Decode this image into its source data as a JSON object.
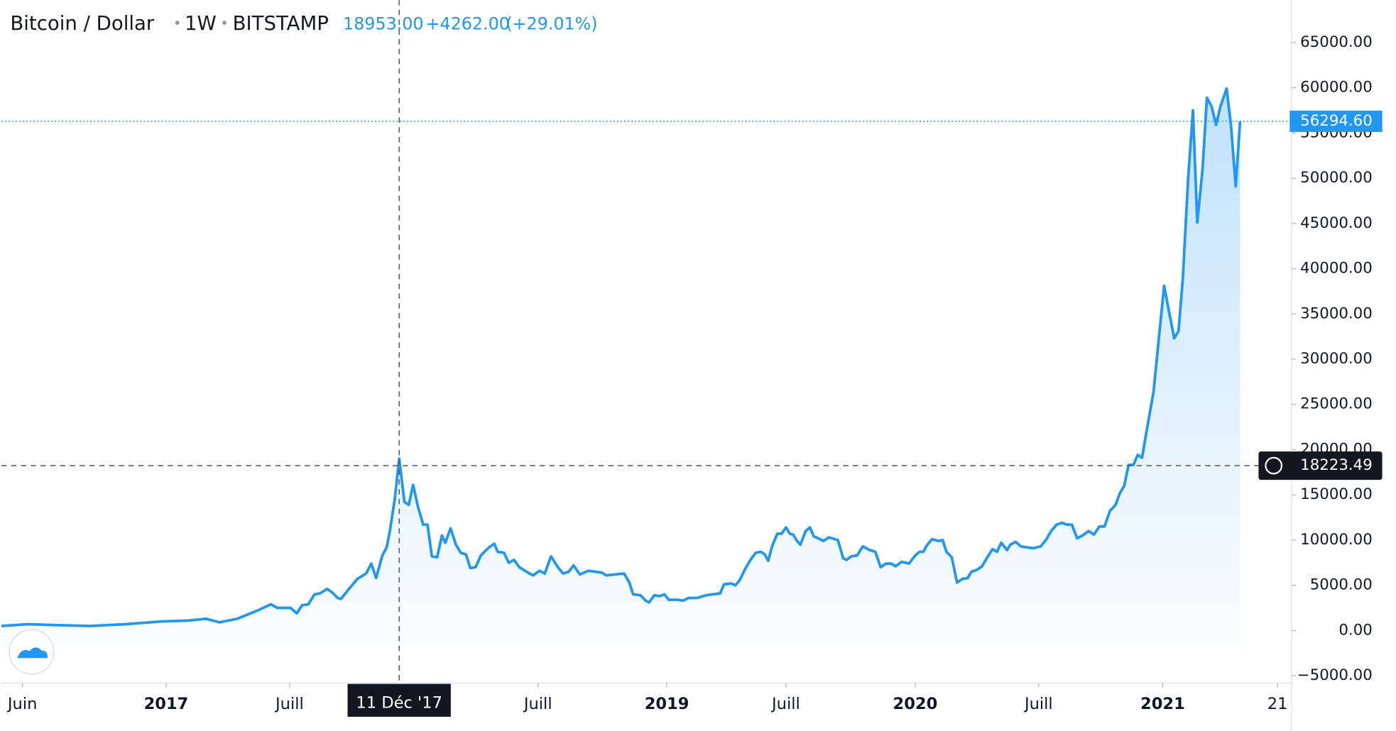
{
  "chart_data": {
    "type": "line",
    "title": "Bitcoin / Dollar",
    "interval": "1W",
    "exchange": "BITSTAMP",
    "price": {
      "value": 18953,
      "label": "18953.00"
    },
    "change": {
      "value": 4262,
      "label": "+4262.00"
    },
    "change_pct": {
      "value": 29.01,
      "label": "(+29.01%)"
    },
    "last_price": {
      "value": 56294.6,
      "label": "56294.60"
    },
    "crosshair_y": {
      "value": 18223.49,
      "label": "18223.49"
    },
    "crosshair_x": {
      "value": 82.8,
      "label": "11 Déc '17"
    },
    "color": "#2196f3",
    "xlim": [
      0,
      268.5
    ],
    "ylim": [
      -5800,
      69700
    ],
    "xticks": [
      {
        "value": 4.4,
        "label": "Juin"
      },
      {
        "value": 34.3,
        "label": "2017"
      },
      {
        "value": 60,
        "label": "Juill"
      },
      {
        "value": 111.7,
        "label": "Juill"
      },
      {
        "value": 138.5,
        "label": "2019"
      },
      {
        "value": 163.3,
        "label": "Juill"
      },
      {
        "value": 190.2,
        "label": "2020"
      },
      {
        "value": 215.9,
        "label": "Juill"
      },
      {
        "value": 241.7,
        "label": "2021"
      },
      {
        "value": 265.6,
        "label": "21"
      }
    ],
    "yticks": [
      {
        "value": -5000,
        "label": "−5000.00"
      },
      {
        "value": 0,
        "label": "0.00"
      },
      {
        "value": 5000,
        "label": "5000.00"
      },
      {
        "value": 10000,
        "label": "10000.00"
      },
      {
        "value": 15000,
        "label": "15000.00"
      },
      {
        "value": 20000,
        "label": "20000.00"
      },
      {
        "value": 25000,
        "label": "25000.00"
      },
      {
        "value": 30000,
        "label": "30000.00"
      },
      {
        "value": 35000,
        "label": "35000.00"
      },
      {
        "value": 40000,
        "label": "40000.00"
      },
      {
        "value": 45000,
        "label": "45000.00"
      },
      {
        "value": 50000,
        "label": "50000.00"
      },
      {
        "value": 55000,
        "label": "55000.00"
      },
      {
        "value": 60000,
        "label": "60000.00"
      },
      {
        "value": 65000,
        "label": "65000.00"
      }
    ],
    "x": [
      0,
      5.6,
      11.1,
      18.5,
      25.9,
      33.3,
      38.9,
      42.6,
      45.4,
      49.1,
      53.7,
      56.1,
      57.4,
      60.2,
      61.5,
      62.6,
      63.9,
      65.2,
      66.3,
      67.8,
      68.9,
      70,
      70.7,
      72.2,
      74.1,
      75.9,
      77,
      78,
      79.3,
      80.2,
      80.9,
      81.9,
      82.8,
      83.9,
      84.8,
      85.7,
      86.7,
      87.8,
      88.7,
      89.6,
      90.7,
      91.7,
      92.4,
      93.5,
      94.6,
      95.6,
      96.7,
      97.6,
      98.7,
      99.8,
      101.5,
      102.6,
      103.3,
      104.6,
      105.6,
      106.7,
      107.8,
      109.6,
      110.7,
      112,
      113.1,
      114.4,
      115.7,
      116.9,
      118.1,
      119.1,
      120.4,
      122.2,
      125,
      125.9,
      129.6,
      130.7,
      131.5,
      133,
      134.1,
      134.8,
      135.9,
      137,
      138,
      138.9,
      140.7,
      141.9,
      143,
      144.8,
      146.7,
      148.1,
      149.6,
      150.4,
      151.9,
      152.8,
      153.7,
      154.8,
      155.9,
      157,
      158.1,
      158.9,
      159.6,
      160.4,
      161.5,
      162.4,
      163.3,
      164.1,
      164.8,
      165.6,
      166.3,
      167.4,
      168.3,
      169.1,
      170,
      171.1,
      172.2,
      174.1,
      175.2,
      175.9,
      176.9,
      178.1,
      179.3,
      180.7,
      181.9,
      183,
      184.1,
      185.2,
      186.1,
      187.4,
      188.9,
      190.2,
      191.1,
      191.9,
      192.6,
      193.7,
      195,
      195.9,
      196.7,
      197.8,
      198.9,
      200,
      201.1,
      201.9,
      203,
      204.1,
      205.2,
      206.3,
      207.2,
      208.1,
      209.3,
      210,
      211.1,
      212.2,
      213.3,
      214.8,
      216.3,
      217.4,
      218.5,
      219.6,
      220.7,
      221.9,
      222.8,
      223.9,
      225,
      226.3,
      227.4,
      228.5,
      229.6,
      230.7,
      231.9,
      232.8,
      233.7,
      234.6,
      235.6,
      236.5,
      237.4,
      238.5,
      239.8,
      240.9,
      242,
      243,
      244.1,
      245,
      245.9,
      247,
      248,
      248.9,
      250,
      250.9,
      251.9,
      252.8,
      253.7,
      255,
      255.9,
      256.9,
      257.8
    ],
    "values": [
      500,
      700,
      600,
      500,
      700,
      1000,
      1100,
      1300,
      900,
      1300,
      2300,
      2900,
      2500,
      2500,
      1900,
      2800,
      2900,
      4000,
      4100,
      4600,
      4200,
      3600,
      3500,
      4500,
      5700,
      6300,
      7400,
      5800,
      8300,
      9200,
      11100,
      14600,
      19000,
      14200,
      13900,
      16100,
      13700,
      11700,
      11700,
      8200,
      8100,
      10500,
      9700,
      11300,
      9500,
      8600,
      8400,
      6900,
      7000,
      8300,
      9200,
      9600,
      8700,
      8600,
      7500,
      7800,
      7000,
      6400,
      6100,
      6600,
      6300,
      8200,
      7100,
      6300,
      6500,
      7200,
      6200,
      6600,
      6400,
      6100,
      6300,
      5300,
      4000,
      3900,
      3300,
      3100,
      3900,
      3800,
      4000,
      3400,
      3400,
      3300,
      3600,
      3600,
      3900,
      4000,
      4100,
      5100,
      5200,
      5000,
      5600,
      6800,
      7800,
      8600,
      8700,
      8400,
      7700,
      9300,
      10700,
      10700,
      11400,
      10700,
      10600,
      9900,
      9500,
      11000,
      11400,
      10400,
      10200,
      9900,
      10300,
      10000,
      8000,
      7800,
      8200,
      8300,
      9300,
      8900,
      8700,
      7000,
      7400,
      7400,
      7100,
      7600,
      7400,
      8300,
      8700,
      8700,
      9400,
      10100,
      9900,
      10000,
      8700,
      8100,
      5300,
      5700,
      5800,
      6500,
      6700,
      7100,
      8100,
      9000,
      8700,
      9700,
      8900,
      9500,
      9800,
      9300,
      9200,
      9100,
      9300,
      10000,
      11000,
      11700,
      11900,
      11700,
      11700,
      10200,
      10500,
      11000,
      10600,
      11500,
      11500,
      13200,
      13900,
      15200,
      16000,
      18300,
      18300,
      19400,
      19100,
      22500,
      26400,
      32300,
      38100,
      35300,
      32300,
      33100,
      39000,
      50000,
      57500,
      45100,
      51000,
      58900,
      57900,
      55900,
      57900,
      59900,
      55900,
      49100,
      56294.6
    ]
  }
}
